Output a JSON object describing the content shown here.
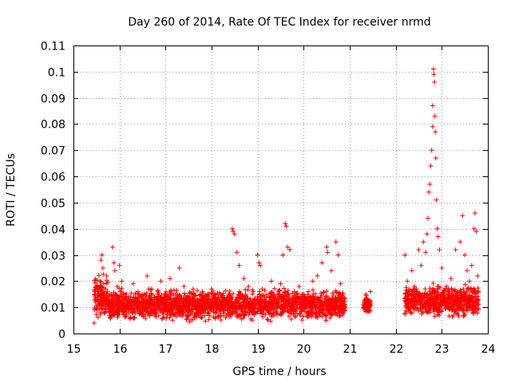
{
  "chart_data": {
    "type": "scatter",
    "title": "Day 260 of 2014, Rate Of TEC Index for receiver nrmd",
    "xlabel": "GPS time / hours",
    "ylabel": "ROTI / TECUs",
    "xlim": [
      15,
      24
    ],
    "ylim": [
      0,
      0.11
    ],
    "xticks": [
      15,
      16,
      17,
      18,
      19,
      20,
      21,
      22,
      23,
      24
    ],
    "yticks": [
      0,
      0.01,
      0.02,
      0.03,
      0.04,
      0.05,
      0.06,
      0.07,
      0.08,
      0.09,
      0.1,
      0.11
    ],
    "xtick_labels": [
      "15",
      "16",
      "17",
      "18",
      "19",
      "20",
      "21",
      "22",
      "23",
      "24"
    ],
    "ytick_labels": [
      "0",
      "0.01",
      "0.02",
      "0.03",
      "0.04",
      "0.05",
      "0.06",
      "0.07",
      "0.08",
      "0.09",
      "0.1",
      "0.11"
    ],
    "grid": true,
    "marker": "plus",
    "color": "#ff0000",
    "series": [
      {
        "name": "nrmd",
        "points": [
          [
            15.45,
            0.004
          ],
          [
            15.48,
            0.012
          ],
          [
            15.5,
            0.013
          ],
          [
            15.52,
            0.009
          ],
          [
            15.55,
            0.016
          ],
          [
            15.58,
            0.02
          ],
          [
            15.6,
            0.028
          ],
          [
            15.62,
            0.03
          ],
          [
            15.64,
            0.025
          ],
          [
            15.66,
            0.019
          ],
          [
            15.7,
            0.014
          ],
          [
            15.72,
            0.022
          ],
          [
            15.8,
            0.012
          ],
          [
            15.85,
            0.033
          ],
          [
            15.88,
            0.027
          ],
          [
            15.9,
            0.024
          ],
          [
            15.95,
            0.018
          ],
          [
            16.0,
            0.026
          ],
          [
            16.05,
            0.02
          ],
          [
            16.1,
            0.011
          ],
          [
            16.15,
            0.015
          ],
          [
            16.2,
            0.009
          ],
          [
            16.3,
            0.019
          ],
          [
            16.4,
            0.016
          ],
          [
            16.5,
            0.012
          ],
          [
            16.6,
            0.022
          ],
          [
            16.7,
            0.017
          ],
          [
            16.8,
            0.013
          ],
          [
            16.9,
            0.02
          ],
          [
            17.0,
            0.015
          ],
          [
            17.1,
            0.021
          ],
          [
            17.2,
            0.011
          ],
          [
            17.3,
            0.025
          ],
          [
            17.4,
            0.018
          ],
          [
            17.5,
            0.014
          ],
          [
            17.6,
            0.017
          ],
          [
            17.7,
            0.012
          ],
          [
            17.8,
            0.016
          ],
          [
            17.9,
            0.013
          ],
          [
            18.0,
            0.017
          ],
          [
            18.1,
            0.011
          ],
          [
            18.2,
            0.015
          ],
          [
            18.3,
            0.013
          ],
          [
            18.45,
            0.04
          ],
          [
            18.47,
            0.039
          ],
          [
            18.5,
            0.038
          ],
          [
            18.55,
            0.031
          ],
          [
            18.6,
            0.026
          ],
          [
            18.7,
            0.021
          ],
          [
            18.8,
            0.018
          ],
          [
            18.9,
            0.016
          ],
          [
            19.0,
            0.03
          ],
          [
            19.03,
            0.027
          ],
          [
            19.06,
            0.026
          ],
          [
            19.1,
            0.017
          ],
          [
            19.2,
            0.014
          ],
          [
            19.3,
            0.02
          ],
          [
            19.4,
            0.012
          ],
          [
            19.5,
            0.019
          ],
          [
            19.55,
            0.03
          ],
          [
            19.6,
            0.042
          ],
          [
            19.62,
            0.041
          ],
          [
            19.65,
            0.033
          ],
          [
            19.7,
            0.032
          ],
          [
            19.8,
            0.016
          ],
          [
            19.9,
            0.018
          ],
          [
            20.0,
            0.015
          ],
          [
            20.1,
            0.016
          ],
          [
            20.2,
            0.02
          ],
          [
            20.3,
            0.022
          ],
          [
            20.4,
            0.027
          ],
          [
            20.5,
            0.033
          ],
          [
            20.52,
            0.031
          ],
          [
            20.6,
            0.024
          ],
          [
            20.7,
            0.035
          ],
          [
            20.75,
            0.03
          ],
          [
            20.8,
            0.019
          ],
          [
            20.85,
            0.014
          ],
          [
            21.3,
            0.011
          ],
          [
            21.35,
            0.015
          ],
          [
            21.4,
            0.013
          ],
          [
            21.45,
            0.016
          ],
          [
            22.2,
            0.03
          ],
          [
            22.25,
            0.02
          ],
          [
            22.3,
            0.017
          ],
          [
            22.35,
            0.024
          ],
          [
            22.4,
            0.018
          ],
          [
            22.45,
            0.016
          ],
          [
            22.5,
            0.032
          ],
          [
            22.55,
            0.026
          ],
          [
            22.6,
            0.035
          ],
          [
            22.65,
            0.031
          ],
          [
            22.68,
            0.038
          ],
          [
            22.7,
            0.044
          ],
          [
            22.72,
            0.054
          ],
          [
            22.74,
            0.057
          ],
          [
            22.76,
            0.064
          ],
          [
            22.78,
            0.07
          ],
          [
            22.8,
            0.079
          ],
          [
            22.8,
            0.087
          ],
          [
            22.82,
            0.101
          ],
          [
            22.83,
            0.099
          ],
          [
            22.84,
            0.096
          ],
          [
            22.85,
            0.083
          ],
          [
            22.86,
            0.077
          ],
          [
            22.87,
            0.067
          ],
          [
            22.88,
            0.051
          ],
          [
            22.9,
            0.04
          ],
          [
            22.92,
            0.037
          ],
          [
            22.95,
            0.032
          ],
          [
            23.0,
            0.025
          ],
          [
            23.1,
            0.018
          ],
          [
            23.2,
            0.021
          ],
          [
            23.3,
            0.032
          ],
          [
            23.4,
            0.035
          ],
          [
            23.45,
            0.045
          ],
          [
            23.5,
            0.03
          ],
          [
            23.55,
            0.024
          ],
          [
            23.6,
            0.02
          ],
          [
            23.65,
            0.026
          ],
          [
            23.7,
            0.04
          ],
          [
            23.72,
            0.046
          ],
          [
            23.75,
            0.039
          ],
          [
            23.78,
            0.022
          ]
        ],
        "bands": [
          {
            "x": [
              15.45,
              15.75
            ],
            "y": [
              0.004,
              0.024
            ]
          },
          {
            "x": [
              15.75,
              20.9
            ],
            "y": [
              0.004,
              0.018
            ]
          },
          {
            "x": [
              21.3,
              21.45
            ],
            "y": [
              0.007,
              0.015
            ]
          },
          {
            "x": [
              22.2,
              23.8
            ],
            "y": [
              0.005,
              0.02
            ]
          }
        ]
      }
    ]
  }
}
